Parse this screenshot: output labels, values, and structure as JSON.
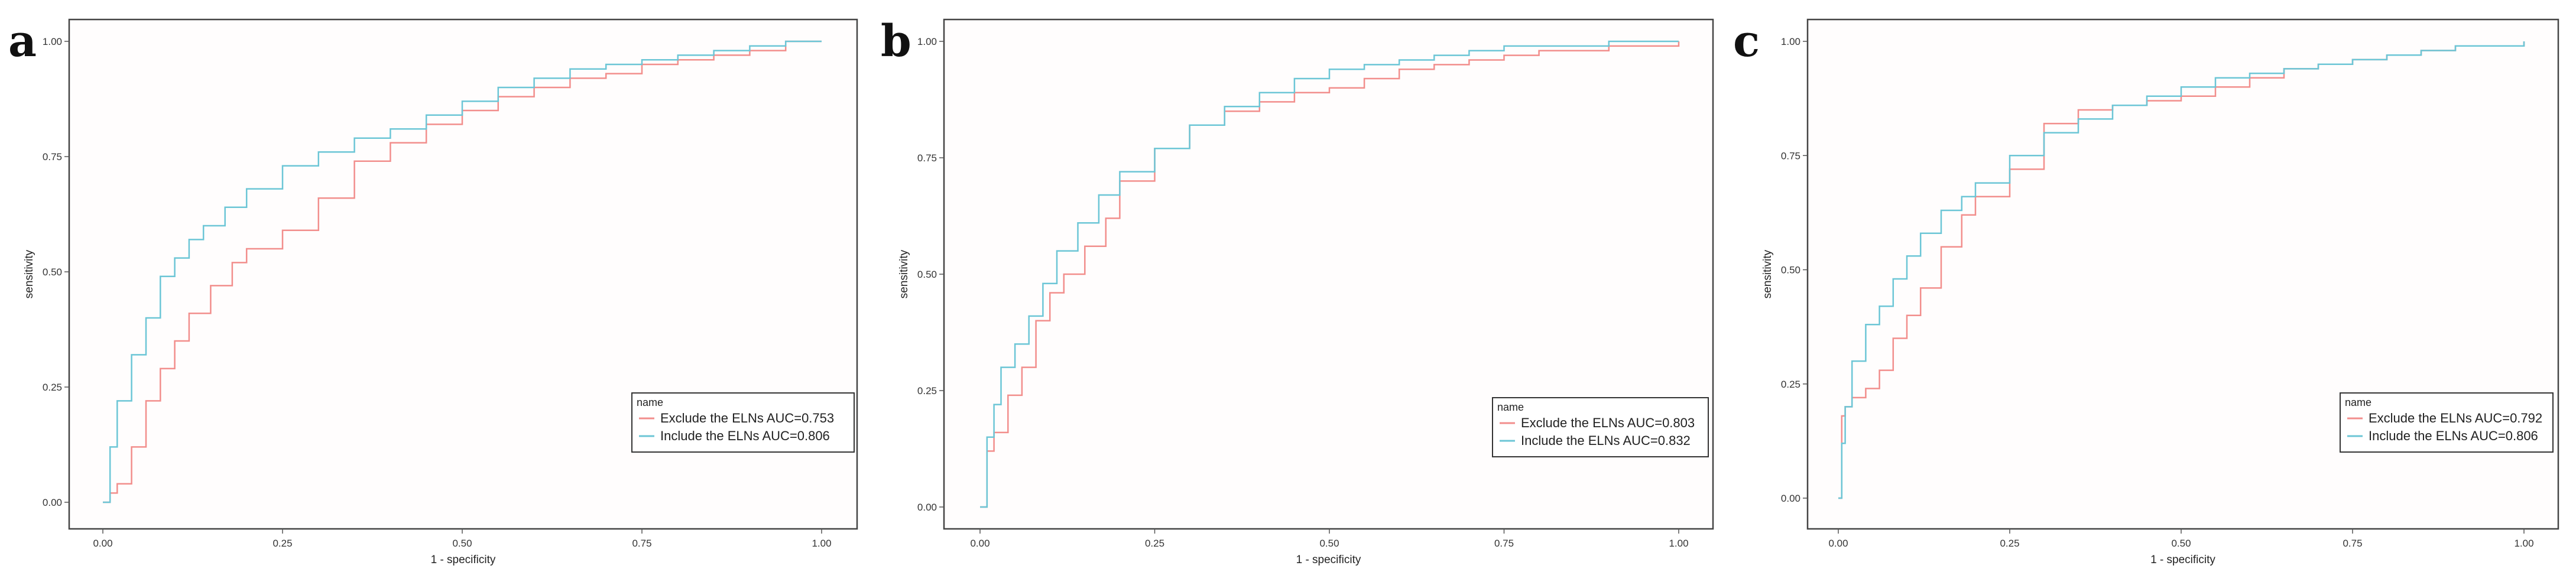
{
  "colors": {
    "exclude": "#f28e8c",
    "include": "#6cc6d6",
    "frame": "#444444",
    "panel_bg": "#fffdfd"
  },
  "chart_data": [
    {
      "panel": "a",
      "type": "line",
      "xlabel": "1 - specificity",
      "ylabel": "sensitivity",
      "xlim": [
        0,
        1
      ],
      "ylim": [
        0,
        1
      ],
      "xticks": [
        "0.00",
        "0.25",
        "0.50",
        "0.75",
        "1.00"
      ],
      "yticks": [
        "0.00",
        "0.25",
        "0.50",
        "0.75",
        "1.00"
      ],
      "grid": false,
      "legend": {
        "title": "name",
        "position": "bottom-right"
      },
      "series": [
        {
          "name": "Exclude the ELNs AUC=0.753",
          "key": "exclude",
          "x": [
            0,
            0.01,
            0.02,
            0.04,
            0.06,
            0.08,
            0.1,
            0.12,
            0.15,
            0.18,
            0.2,
            0.25,
            0.3,
            0.35,
            0.4,
            0.45,
            0.5,
            0.55,
            0.6,
            0.65,
            0.7,
            0.75,
            0.8,
            0.85,
            0.9,
            0.95,
            1.0
          ],
          "y": [
            0,
            0.02,
            0.04,
            0.12,
            0.22,
            0.29,
            0.35,
            0.41,
            0.47,
            0.52,
            0.55,
            0.59,
            0.66,
            0.74,
            0.78,
            0.82,
            0.85,
            0.88,
            0.9,
            0.92,
            0.93,
            0.95,
            0.96,
            0.97,
            0.98,
            1.0,
            1.0
          ]
        },
        {
          "name": "Include the ELNs AUC=0.806",
          "key": "include",
          "x": [
            0,
            0.01,
            0.02,
            0.04,
            0.06,
            0.08,
            0.1,
            0.12,
            0.14,
            0.17,
            0.2,
            0.25,
            0.3,
            0.35,
            0.4,
            0.45,
            0.5,
            0.55,
            0.6,
            0.65,
            0.7,
            0.75,
            0.8,
            0.85,
            0.9,
            0.95,
            1.0
          ],
          "y": [
            0,
            0.12,
            0.22,
            0.32,
            0.4,
            0.49,
            0.53,
            0.57,
            0.6,
            0.64,
            0.68,
            0.73,
            0.76,
            0.79,
            0.81,
            0.84,
            0.87,
            0.9,
            0.92,
            0.94,
            0.95,
            0.96,
            0.97,
            0.98,
            0.99,
            1.0,
            1.0
          ]
        }
      ]
    },
    {
      "panel": "b",
      "type": "line",
      "xlabel": "1 - specificity",
      "ylabel": "sensitivity",
      "xlim": [
        0,
        1
      ],
      "ylim": [
        0,
        1
      ],
      "xticks": [
        "0.00",
        "0.25",
        "0.50",
        "0.75",
        "1.00"
      ],
      "yticks": [
        "0.00",
        "0.25",
        "0.50",
        "0.75",
        "1.00"
      ],
      "grid": false,
      "legend": {
        "title": "name",
        "position": "bottom-right"
      },
      "series": [
        {
          "name": "Exclude the ELNs AUC=0.803",
          "key": "exclude",
          "x": [
            0,
            0.01,
            0.02,
            0.04,
            0.06,
            0.08,
            0.1,
            0.12,
            0.15,
            0.18,
            0.2,
            0.25,
            0.3,
            0.35,
            0.4,
            0.45,
            0.5,
            0.55,
            0.6,
            0.65,
            0.7,
            0.75,
            0.8,
            0.85,
            0.9,
            0.95,
            1.0
          ],
          "y": [
            0,
            0.12,
            0.16,
            0.24,
            0.3,
            0.4,
            0.46,
            0.5,
            0.56,
            0.62,
            0.7,
            0.77,
            0.82,
            0.85,
            0.87,
            0.89,
            0.9,
            0.92,
            0.94,
            0.95,
            0.96,
            0.97,
            0.98,
            0.98,
            0.99,
            0.99,
            1.0
          ]
        },
        {
          "name": "Include the ELNs AUC=0.832",
          "key": "include",
          "x": [
            0,
            0.01,
            0.02,
            0.03,
            0.05,
            0.07,
            0.09,
            0.11,
            0.14,
            0.17,
            0.2,
            0.25,
            0.3,
            0.35,
            0.4,
            0.45,
            0.5,
            0.55,
            0.6,
            0.65,
            0.7,
            0.75,
            0.8,
            0.85,
            0.9,
            0.95,
            1.0
          ],
          "y": [
            0,
            0.15,
            0.22,
            0.3,
            0.35,
            0.41,
            0.48,
            0.55,
            0.61,
            0.67,
            0.72,
            0.77,
            0.82,
            0.86,
            0.89,
            0.92,
            0.94,
            0.95,
            0.96,
            0.97,
            0.98,
            0.99,
            0.99,
            0.99,
            1.0,
            1.0,
            1.0
          ]
        }
      ]
    },
    {
      "panel": "c",
      "type": "line",
      "xlabel": "1 - specificity",
      "ylabel": "sensitivity",
      "xlim": [
        0,
        1
      ],
      "ylim": [
        0,
        1
      ],
      "xticks": [
        "0.00",
        "0.25",
        "0.50",
        "0.75",
        "1.00"
      ],
      "yticks": [
        "0.00",
        "0.25",
        "0.50",
        "0.75",
        "1.00"
      ],
      "grid": false,
      "legend": {
        "title": "name",
        "position": "bottom-right"
      },
      "series": [
        {
          "name": "Exclude the ELNs AUC=0.792",
          "key": "exclude",
          "x": [
            0,
            0.005,
            0.01,
            0.02,
            0.04,
            0.06,
            0.08,
            0.1,
            0.12,
            0.15,
            0.18,
            0.2,
            0.25,
            0.3,
            0.35,
            0.4,
            0.45,
            0.5,
            0.55,
            0.6,
            0.65,
            0.7,
            0.75,
            0.8,
            0.85,
            0.9,
            0.95,
            1.0
          ],
          "y": [
            0,
            0.18,
            0.2,
            0.22,
            0.24,
            0.28,
            0.35,
            0.4,
            0.46,
            0.55,
            0.62,
            0.66,
            0.72,
            0.82,
            0.85,
            0.86,
            0.87,
            0.88,
            0.9,
            0.92,
            0.94,
            0.95,
            0.96,
            0.97,
            0.98,
            0.99,
            0.99,
            1.0
          ]
        },
        {
          "name": "Include the ELNs AUC=0.806",
          "key": "include",
          "x": [
            0,
            0.005,
            0.01,
            0.02,
            0.04,
            0.06,
            0.08,
            0.1,
            0.12,
            0.15,
            0.18,
            0.2,
            0.25,
            0.3,
            0.35,
            0.4,
            0.45,
            0.5,
            0.55,
            0.6,
            0.65,
            0.7,
            0.75,
            0.8,
            0.85,
            0.9,
            0.95,
            1.0
          ],
          "y": [
            0,
            0.12,
            0.2,
            0.3,
            0.38,
            0.42,
            0.48,
            0.53,
            0.58,
            0.63,
            0.66,
            0.69,
            0.75,
            0.8,
            0.83,
            0.86,
            0.88,
            0.9,
            0.92,
            0.93,
            0.94,
            0.95,
            0.96,
            0.97,
            0.98,
            0.99,
            0.99,
            1.0
          ]
        }
      ]
    }
  ]
}
